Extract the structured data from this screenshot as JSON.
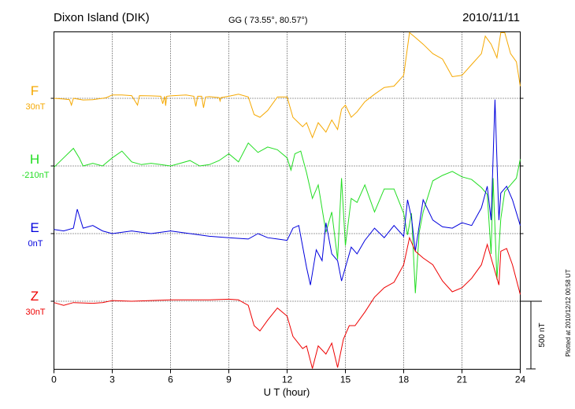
{
  "header": {
    "station": "Dixon Island (DIK)",
    "coords": "GG ( 73.55°,  80.57°)",
    "date": "2010/11/11"
  },
  "footer": {
    "plotted": "Plotted at 2010/12/12 00:58 UT"
  },
  "chart_data": {
    "type": "line",
    "xlabel": "U T (hour)",
    "xlim": [
      0,
      24
    ],
    "xticks": [
      "0",
      "3",
      "6",
      "9",
      "12",
      "15",
      "18",
      "21",
      "24"
    ],
    "grid": true,
    "scale_bar_label": "500 nT",
    "series": [
      {
        "name": "F",
        "baseline_label": "30nT",
        "color": "#f5a800",
        "baseline_nT": 30,
        "points": [
          [
            0,
            30
          ],
          [
            0.5,
            25
          ],
          [
            0.8,
            20
          ],
          [
            0.9,
            -20
          ],
          [
            1.0,
            30
          ],
          [
            1.5,
            18
          ],
          [
            2.0,
            20
          ],
          [
            2.5,
            30
          ],
          [
            2.7,
            35
          ],
          [
            3.0,
            55
          ],
          [
            3.5,
            55
          ],
          [
            4.0,
            50
          ],
          [
            4.3,
            -20
          ],
          [
            4.4,
            50
          ],
          [
            5,
            48
          ],
          [
            5.5,
            45
          ],
          [
            5.6,
            -10
          ],
          [
            5.7,
            45
          ],
          [
            5.75,
            -25
          ],
          [
            5.8,
            45
          ],
          [
            6.0,
            48
          ],
          [
            6.8,
            55
          ],
          [
            7.2,
            45
          ],
          [
            7.3,
            -30
          ],
          [
            7.4,
            45
          ],
          [
            7.6,
            45
          ],
          [
            7.7,
            -40
          ],
          [
            7.8,
            40
          ],
          [
            8.0,
            42
          ],
          [
            8.5,
            35
          ],
          [
            8.55,
            10
          ],
          [
            8.6,
            35
          ],
          [
            9.0,
            45
          ],
          [
            9.5,
            60
          ],
          [
            10.0,
            40
          ],
          [
            10.3,
            -90
          ],
          [
            10.6,
            -110
          ],
          [
            11.0,
            -60
          ],
          [
            11.5,
            40
          ],
          [
            12.0,
            40
          ],
          [
            12.3,
            -110
          ],
          [
            12.8,
            -180
          ],
          [
            13.0,
            -150
          ],
          [
            13.3,
            -260
          ],
          [
            13.6,
            -150
          ],
          [
            14.0,
            -220
          ],
          [
            14.3,
            -130
          ],
          [
            14.6,
            -200
          ],
          [
            14.8,
            -50
          ],
          [
            15.0,
            -20
          ],
          [
            15.3,
            -110
          ],
          [
            15.6,
            -70
          ],
          [
            16.0,
            5
          ],
          [
            16.5,
            60
          ],
          [
            17.0,
            110
          ],
          [
            17.5,
            120
          ],
          [
            18.0,
            200
          ],
          [
            18.3,
            520
          ],
          [
            18.6,
            480
          ],
          [
            19.0,
            430
          ],
          [
            19.5,
            360
          ],
          [
            20.0,
            320
          ],
          [
            20.5,
            190
          ],
          [
            21.0,
            200
          ],
          [
            21.5,
            280
          ],
          [
            22.0,
            360
          ],
          [
            22.2,
            490
          ],
          [
            22.5,
            430
          ],
          [
            22.8,
            330
          ],
          [
            23.0,
            560
          ],
          [
            23.2,
            520
          ],
          [
            23.5,
            360
          ],
          [
            23.8,
            300
          ],
          [
            24.0,
            120
          ]
        ]
      },
      {
        "name": "H",
        "baseline_label": "-210nT",
        "color": "#22dd22",
        "baseline_nT": -210,
        "points": [
          [
            0,
            -220
          ],
          [
            0.5,
            -150
          ],
          [
            1.0,
            -80
          ],
          [
            1.3,
            -150
          ],
          [
            1.5,
            -210
          ],
          [
            2.0,
            -190
          ],
          [
            2.5,
            -210
          ],
          [
            3.0,
            -150
          ],
          [
            3.5,
            -100
          ],
          [
            4.0,
            -180
          ],
          [
            4.5,
            -200
          ],
          [
            5.0,
            -190
          ],
          [
            5.5,
            -200
          ],
          [
            6.0,
            -210
          ],
          [
            6.5,
            -190
          ],
          [
            7.0,
            -170
          ],
          [
            7.5,
            -210
          ],
          [
            8.0,
            -200
          ],
          [
            8.5,
            -170
          ],
          [
            9.0,
            -120
          ],
          [
            9.5,
            -180
          ],
          [
            10.0,
            -40
          ],
          [
            10.5,
            -110
          ],
          [
            11.0,
            -70
          ],
          [
            11.5,
            -90
          ],
          [
            12.0,
            -150
          ],
          [
            12.2,
            -240
          ],
          [
            12.4,
            -120
          ],
          [
            12.7,
            -100
          ],
          [
            13.0,
            -260
          ],
          [
            13.3,
            -450
          ],
          [
            13.6,
            -350
          ],
          [
            14.0,
            -700
          ],
          [
            14.3,
            -550
          ],
          [
            14.6,
            -900
          ],
          [
            14.8,
            -300
          ],
          [
            15.0,
            -800
          ],
          [
            15.3,
            -450
          ],
          [
            15.6,
            -480
          ],
          [
            16.0,
            -350
          ],
          [
            16.5,
            -550
          ],
          [
            17.0,
            -380
          ],
          [
            17.5,
            -380
          ],
          [
            18.0,
            -560
          ],
          [
            18.2,
            -720
          ],
          [
            18.4,
            -560
          ],
          [
            18.6,
            -1150
          ],
          [
            18.8,
            -700
          ],
          [
            19.0,
            -550
          ],
          [
            19.5,
            -320
          ],
          [
            20.0,
            -280
          ],
          [
            20.5,
            -250
          ],
          [
            21.0,
            -290
          ],
          [
            21.5,
            -310
          ],
          [
            22.0,
            -370
          ],
          [
            22.3,
            -420
          ],
          [
            22.5,
            -860
          ],
          [
            22.6,
            -300
          ],
          [
            22.8,
            -1050
          ],
          [
            23.0,
            -600
          ],
          [
            23.2,
            -400
          ],
          [
            23.5,
            -350
          ],
          [
            23.8,
            -300
          ],
          [
            24.0,
            -160
          ]
        ]
      },
      {
        "name": "E",
        "baseline_label": "0nT",
        "color": "#0000dd",
        "baseline_nT": 0,
        "points": [
          [
            0,
            30
          ],
          [
            0.5,
            20
          ],
          [
            1.0,
            40
          ],
          [
            1.2,
            180
          ],
          [
            1.5,
            40
          ],
          [
            2.0,
            60
          ],
          [
            2.5,
            20
          ],
          [
            3.0,
            0
          ],
          [
            4.0,
            20
          ],
          [
            5.0,
            0
          ],
          [
            6.0,
            20
          ],
          [
            7.0,
            0
          ],
          [
            8.0,
            -20
          ],
          [
            9.0,
            -30
          ],
          [
            10.0,
            -40
          ],
          [
            10.5,
            0
          ],
          [
            11.0,
            -30
          ],
          [
            11.5,
            -40
          ],
          [
            12.0,
            -50
          ],
          [
            12.3,
            40
          ],
          [
            12.6,
            60
          ],
          [
            13.0,
            -250
          ],
          [
            13.2,
            -380
          ],
          [
            13.5,
            -120
          ],
          [
            13.8,
            -200
          ],
          [
            14.0,
            80
          ],
          [
            14.3,
            -150
          ],
          [
            14.6,
            -200
          ],
          [
            14.8,
            -350
          ],
          [
            15.0,
            -250
          ],
          [
            15.3,
            -100
          ],
          [
            15.6,
            -150
          ],
          [
            16.0,
            -50
          ],
          [
            16.5,
            40
          ],
          [
            17.0,
            -30
          ],
          [
            17.5,
            60
          ],
          [
            18.0,
            -20
          ],
          [
            18.2,
            250
          ],
          [
            18.4,
            120
          ],
          [
            18.6,
            -130
          ],
          [
            18.8,
            60
          ],
          [
            19.0,
            250
          ],
          [
            19.5,
            100
          ],
          [
            20.0,
            50
          ],
          [
            20.5,
            40
          ],
          [
            21.0,
            80
          ],
          [
            21.5,
            60
          ],
          [
            22.0,
            190
          ],
          [
            22.3,
            350
          ],
          [
            22.5,
            100
          ],
          [
            22.7,
            990
          ],
          [
            22.9,
            100
          ],
          [
            23.0,
            300
          ],
          [
            23.3,
            350
          ],
          [
            23.6,
            250
          ],
          [
            24.0,
            60
          ]
        ]
      },
      {
        "name": "Z",
        "baseline_label": "30nT",
        "color": "#ee0000",
        "baseline_nT": 30,
        "points": [
          [
            0,
            20
          ],
          [
            0.5,
            0
          ],
          [
            1.0,
            20
          ],
          [
            2.0,
            15
          ],
          [
            2.5,
            20
          ],
          [
            3.0,
            35
          ],
          [
            4.0,
            30
          ],
          [
            5.0,
            35
          ],
          [
            6.0,
            40
          ],
          [
            7.0,
            40
          ],
          [
            8.0,
            40
          ],
          [
            9.0,
            45
          ],
          [
            9.5,
            40
          ],
          [
            10.0,
            0
          ],
          [
            10.3,
            -150
          ],
          [
            10.6,
            -190
          ],
          [
            11.0,
            -110
          ],
          [
            11.5,
            -20
          ],
          [
            12.0,
            -80
          ],
          [
            12.3,
            -230
          ],
          [
            12.8,
            -320
          ],
          [
            13.0,
            -300
          ],
          [
            13.3,
            -500
          ],
          [
            13.6,
            -300
          ],
          [
            14.0,
            -360
          ],
          [
            14.3,
            -280
          ],
          [
            14.6,
            -460
          ],
          [
            14.9,
            -250
          ],
          [
            15.2,
            -150
          ],
          [
            15.5,
            -150
          ],
          [
            16.0,
            -50
          ],
          [
            16.5,
            60
          ],
          [
            17.0,
            130
          ],
          [
            17.5,
            170
          ],
          [
            18.0,
            300
          ],
          [
            18.3,
            500
          ],
          [
            18.6,
            400
          ],
          [
            19.0,
            350
          ],
          [
            19.5,
            300
          ],
          [
            20.0,
            180
          ],
          [
            20.5,
            100
          ],
          [
            21.0,
            130
          ],
          [
            21.5,
            200
          ],
          [
            22.0,
            300
          ],
          [
            22.3,
            450
          ],
          [
            22.6,
            300
          ],
          [
            22.9,
            150
          ],
          [
            23.0,
            400
          ],
          [
            23.3,
            420
          ],
          [
            23.6,
            300
          ],
          [
            24.0,
            80
          ]
        ]
      }
    ]
  }
}
